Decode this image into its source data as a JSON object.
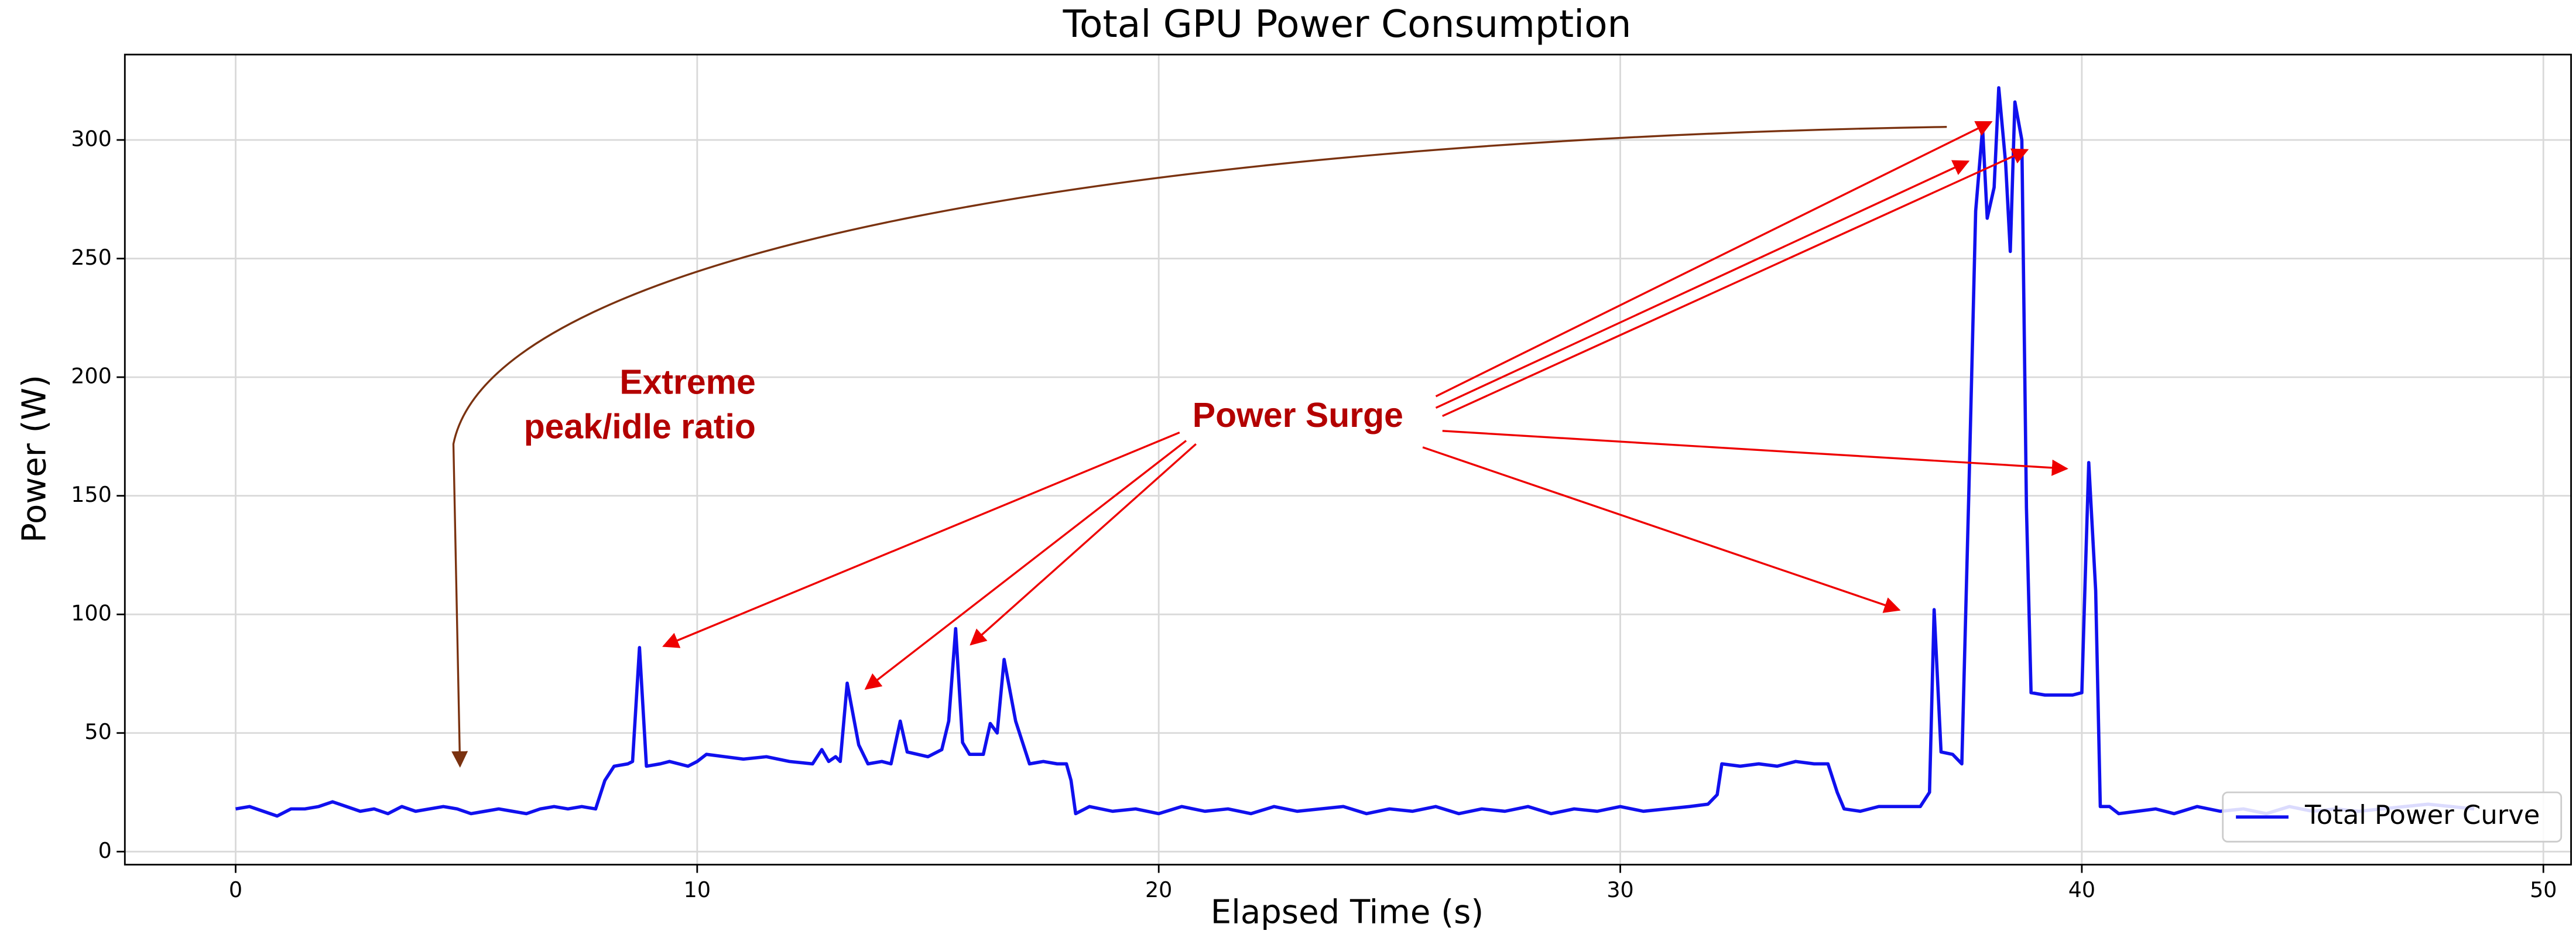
{
  "chart_data": {
    "type": "line",
    "title": "Total GPU Power Consumption",
    "x_label": "Elapsed Time (s)",
    "y_label": "Power (W)",
    "xlim": [
      -2.4,
      50.6
    ],
    "ylim": [
      -5.5,
      336
    ],
    "xticks": [
      0,
      10,
      20,
      30,
      40,
      50
    ],
    "yticks": [
      0,
      50,
      100,
      150,
      200,
      250,
      300
    ],
    "grid": true,
    "legend": "lower right",
    "annotations": [
      "Extreme",
      "peak/idle ratio",
      "Power Surge"
    ],
    "series": [
      {
        "name": "Total Power Curve",
        "color": "#1010ee",
        "x": [
          0,
          0.3,
          0.6,
          0.9,
          1.2,
          1.5,
          1.8,
          2.1,
          2.4,
          2.7,
          3.0,
          3.3,
          3.6,
          3.9,
          4.2,
          4.5,
          4.8,
          5.1,
          5.4,
          5.7,
          6.0,
          6.3,
          6.6,
          6.9,
          7.2,
          7.5,
          7.8,
          8.0,
          8.2,
          8.5,
          8.6,
          8.75,
          8.9,
          9.2,
          9.4,
          9.8,
          10.0,
          10.2,
          10.6,
          11.0,
          11.5,
          12.0,
          12.5,
          12.7,
          12.85,
          13.0,
          13.1,
          13.25,
          13.5,
          13.7,
          14.0,
          14.2,
          14.4,
          14.55,
          15.0,
          15.3,
          15.45,
          15.6,
          15.75,
          15.9,
          16.2,
          16.35,
          16.5,
          16.65,
          16.9,
          17.2,
          17.5,
          17.8,
          18.0,
          18.1,
          18.2,
          18.5,
          19.0,
          19.5,
          20.0,
          20.5,
          21.0,
          21.5,
          22.0,
          22.5,
          23.0,
          23.5,
          24.0,
          24.5,
          25.0,
          25.5,
          26.0,
          26.5,
          27.0,
          27.5,
          28.0,
          28.5,
          29.0,
          29.5,
          30.0,
          30.5,
          31.0,
          31.5,
          31.9,
          32.1,
          32.2,
          32.6,
          33.0,
          33.4,
          33.8,
          34.2,
          34.5,
          34.7,
          34.85,
          35.2,
          35.6,
          36.0,
          36.5,
          36.7,
          36.8,
          36.95,
          37.2,
          37.4,
          37.55,
          37.7,
          37.85,
          37.95,
          38.1,
          38.2,
          38.35,
          38.45,
          38.55,
          38.7,
          38.8,
          38.9,
          39.2,
          39.5,
          39.8,
          40.0,
          40.05,
          40.15,
          40.3,
          40.4,
          40.6,
          40.8,
          41.2,
          41.6,
          42.0,
          42.5,
          43.0,
          43.5,
          44.0,
          44.5,
          45.0,
          45.5,
          46.0,
          46.5,
          47.0,
          47.5,
          48.0,
          48.5
        ],
        "values": [
          18,
          19,
          17,
          15,
          18,
          18,
          19,
          21,
          19,
          17,
          18,
          16,
          19,
          17,
          18,
          19,
          18,
          16,
          17,
          18,
          17,
          16,
          18,
          19,
          18,
          19,
          18,
          30,
          36,
          37,
          38,
          86,
          36,
          37,
          38,
          36,
          38,
          41,
          40,
          39,
          40,
          38,
          37,
          43,
          38,
          40,
          38,
          71,
          45,
          37,
          38,
          37,
          55,
          42,
          40,
          43,
          55,
          94,
          46,
          41,
          41,
          54,
          50,
          81,
          55,
          37,
          38,
          37,
          37,
          30,
          16,
          19,
          17,
          18,
          16,
          19,
          17,
          18,
          16,
          19,
          17,
          18,
          19,
          16,
          18,
          17,
          19,
          16,
          18,
          17,
          19,
          16,
          18,
          17,
          19,
          17,
          18,
          19,
          20,
          24,
          37,
          36,
          37,
          36,
          38,
          37,
          37,
          25,
          18,
          17,
          19,
          19,
          19,
          25,
          102,
          42,
          41,
          37,
          150,
          270,
          305,
          267,
          280,
          322,
          290,
          253,
          316,
          300,
          145,
          67,
          66,
          66,
          66,
          67,
          100,
          164,
          110,
          19,
          19,
          16,
          17,
          18,
          16,
          19,
          17,
          18,
          16,
          19,
          17,
          18,
          17,
          18,
          19,
          20,
          19,
          18
        ]
      }
    ]
  }
}
